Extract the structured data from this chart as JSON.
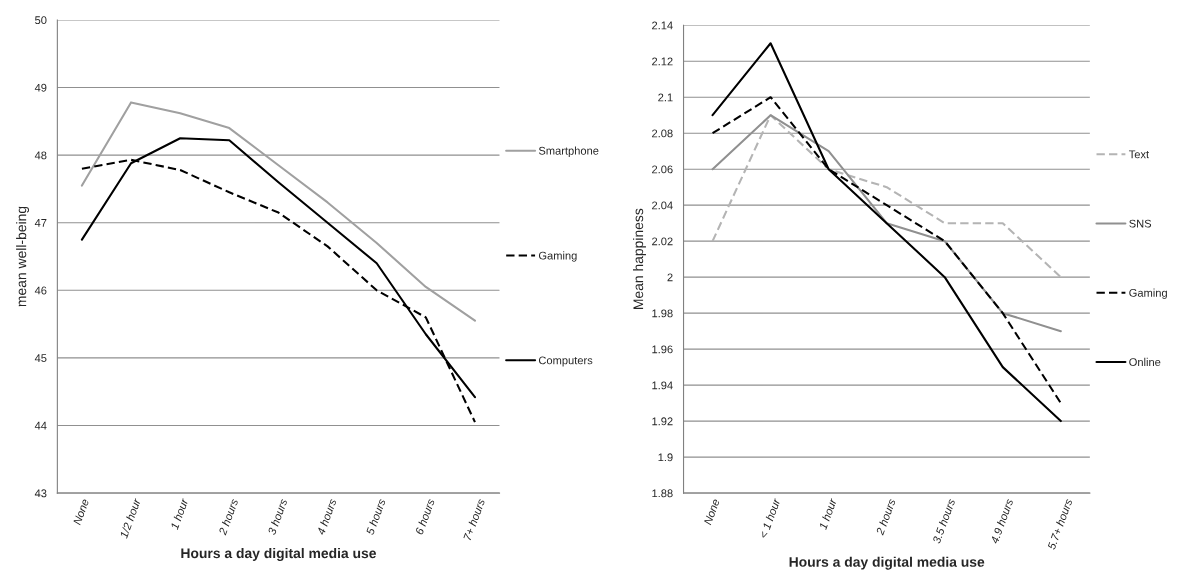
{
  "chart_data": [
    {
      "type": "line",
      "xlabel": "Hours a day digital media use",
      "ylabel": "mean well-being",
      "categories": [
        "None",
        "1/2 hour",
        "1 hour",
        "2 hours",
        "3 hours",
        "4 hours",
        "5 hours",
        "6 hours",
        "7+ hours"
      ],
      "series": [
        {
          "name": "Smartphone",
          "color": "#a0a0a0",
          "line_style": "solid",
          "values": [
            47.55,
            48.78,
            48.62,
            48.4,
            47.85,
            47.3,
            46.7,
            46.05,
            45.55
          ]
        },
        {
          "name": "Gaming",
          "color": "#000000",
          "line_style": "dashed",
          "values": [
            47.8,
            47.93,
            47.78,
            47.45,
            47.15,
            46.65,
            46.0,
            45.6,
            44.05
          ]
        },
        {
          "name": "Computers",
          "color": "#000000",
          "line_style": "solid",
          "values": [
            46.75,
            47.88,
            48.25,
            48.22,
            47.6,
            47.0,
            46.4,
            45.35,
            44.42
          ]
        }
      ],
      "ylim": [
        43,
        50
      ],
      "yticks": [
        43,
        44,
        45,
        46,
        47,
        48,
        49,
        50
      ],
      "grid": "y",
      "legend": "right"
    },
    {
      "type": "line",
      "xlabel": "Hours a day digital media use",
      "ylabel": "Mean happiness",
      "categories": [
        "None",
        "< 1 hour",
        "1 hour",
        "2 hours",
        "3.5 hours",
        "4.9 hours",
        "5.7+ hours"
      ],
      "series": [
        {
          "name": "Text",
          "color": "#b4b4b4",
          "line_style": "dashed",
          "values": [
            2.02,
            2.09,
            2.06,
            2.05,
            2.03,
            2.03,
            2.0
          ]
        },
        {
          "name": "SNS",
          "color": "#909090",
          "line_style": "solid",
          "values": [
            2.06,
            2.09,
            2.07,
            2.03,
            2.02,
            1.98,
            1.97
          ]
        },
        {
          "name": "Gaming",
          "color": "#000000",
          "line_style": "dashed",
          "values": [
            2.08,
            2.1,
            2.06,
            2.04,
            2.02,
            1.98,
            1.93
          ]
        },
        {
          "name": "Online",
          "color": "#000000",
          "line_style": "solid",
          "values": [
            2.09,
            2.13,
            2.06,
            2.03,
            2.0,
            1.95,
            1.92
          ]
        }
      ],
      "ylim": [
        1.88,
        2.14
      ],
      "yticks": [
        1.88,
        1.9,
        1.92,
        1.94,
        1.96,
        1.98,
        2,
        2.02,
        2.04,
        2.06,
        2.08,
        2.1,
        2.12,
        2.14
      ],
      "grid": "y",
      "legend": "right"
    }
  ]
}
